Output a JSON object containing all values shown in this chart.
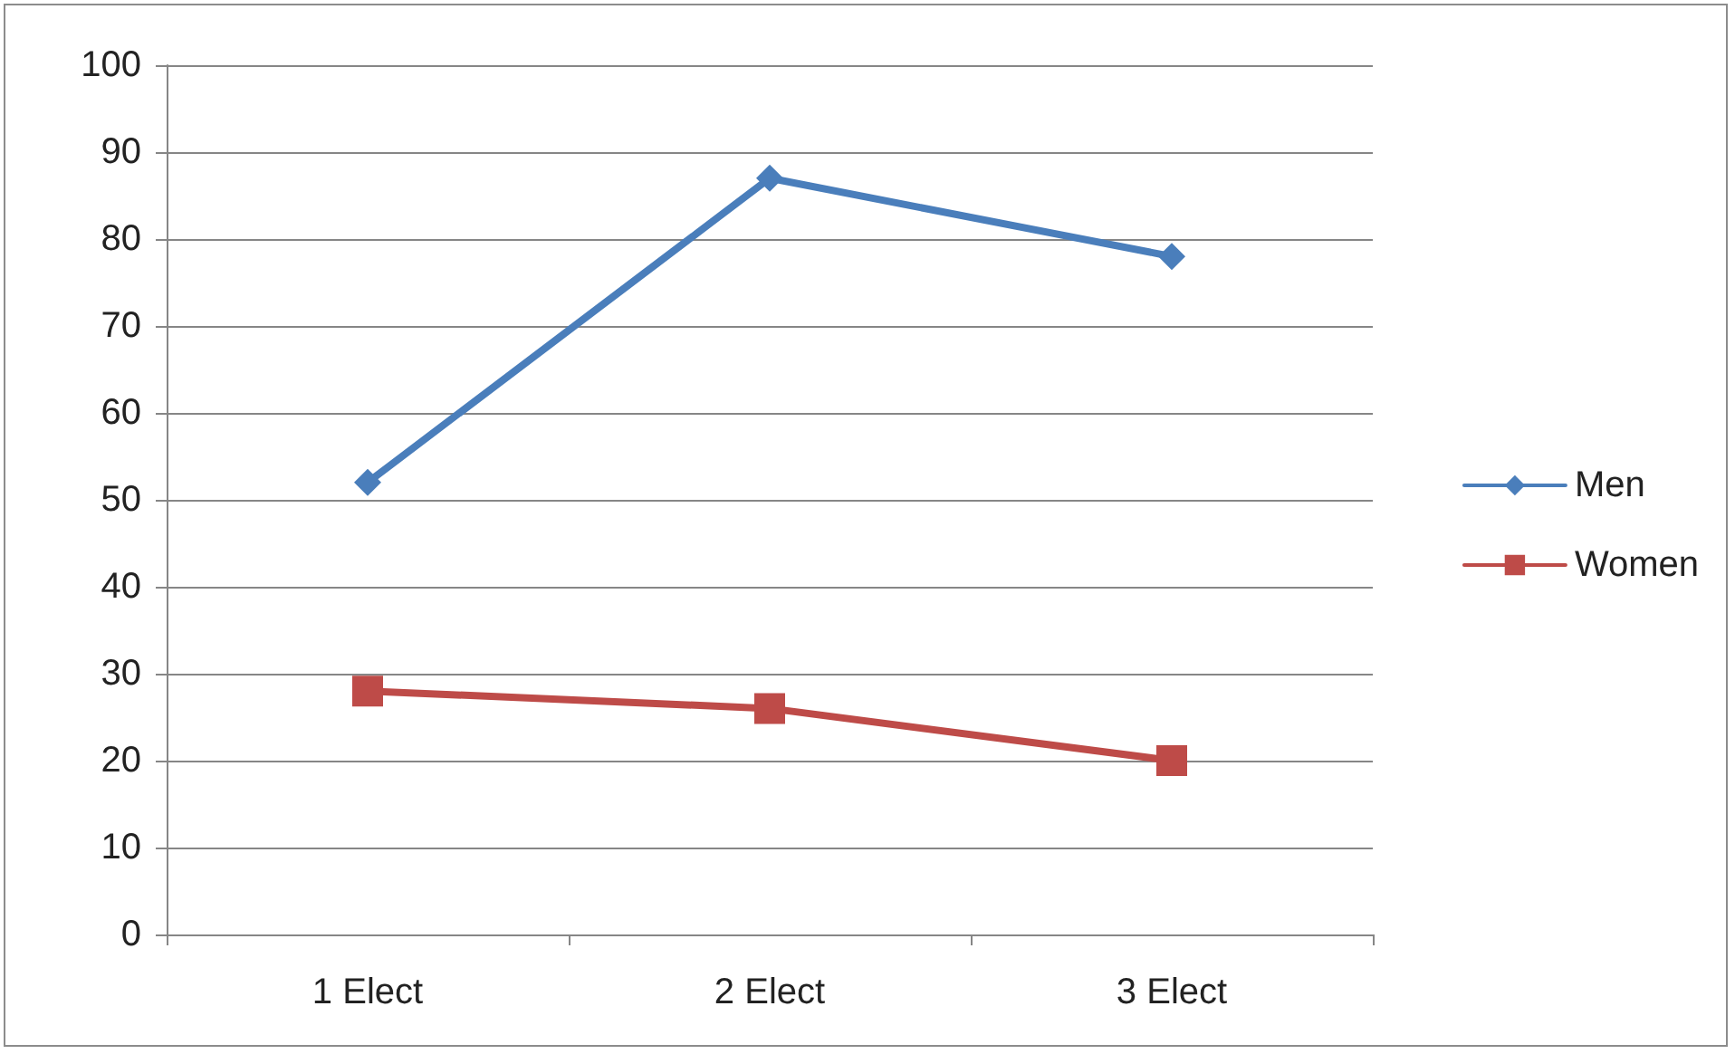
{
  "chart_data": {
    "type": "line",
    "categories": [
      "1 Elect",
      "2 Elect",
      "3 Elect"
    ],
    "series": [
      {
        "name": "Men",
        "color": "#4a7ebb",
        "marker": "diamond",
        "values": [
          52,
          87,
          78
        ]
      },
      {
        "name": "Women",
        "color": "#be4b48",
        "marker": "square",
        "values": [
          28,
          26,
          20
        ]
      }
    ],
    "ylim": [
      0,
      100
    ],
    "yticks": [
      0,
      10,
      20,
      30,
      40,
      50,
      60,
      70,
      80,
      90,
      100
    ],
    "grid": "y",
    "legend": "right",
    "line_style": "solid"
  }
}
